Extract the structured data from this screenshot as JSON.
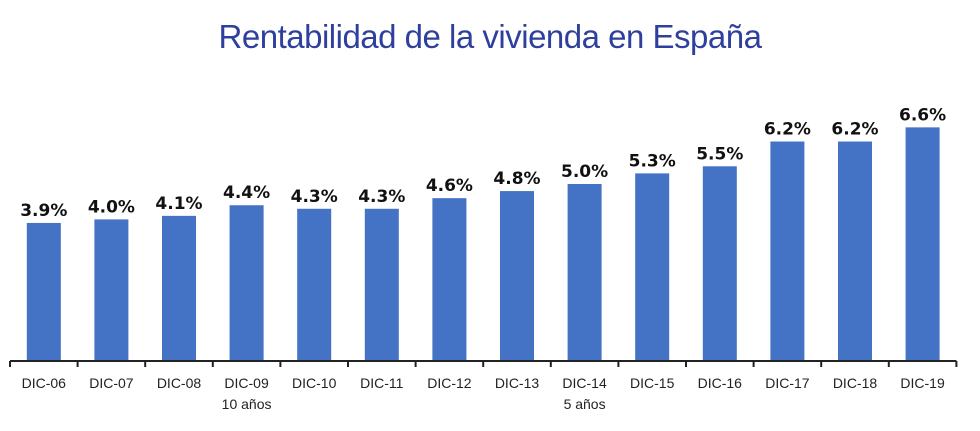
{
  "chart_data": {
    "type": "bar",
    "title": "Rentabilidad de la vivienda en España",
    "categories": [
      "DIC-06",
      "DIC-07",
      "DIC-08",
      "DIC-09",
      "DIC-10",
      "DIC-11",
      "DIC-12",
      "DIC-13",
      "DIC-14",
      "DIC-15",
      "DIC-16",
      "DIC-17",
      "DIC-18",
      "DIC-19"
    ],
    "sublabels": [
      "",
      "",
      "",
      "10 años",
      "",
      "",
      "",
      "",
      "5 años",
      "",
      "",
      "",
      "",
      ""
    ],
    "values": [
      3.9,
      4.0,
      4.1,
      4.4,
      4.3,
      4.3,
      4.6,
      4.8,
      5.0,
      5.3,
      5.5,
      6.2,
      6.2,
      6.6
    ],
    "data_labels": [
      "3.9%",
      "4.0%",
      "4.1%",
      "4.4%",
      "4.3%",
      "4.3%",
      "4.6%",
      "4.8%",
      "5.0%",
      "5.3%",
      "5.5%",
      "6.2%",
      "6.2%",
      "6.6%"
    ],
    "ylim": [
      0,
      7
    ],
    "grid": false,
    "legend": "none",
    "bar_color": "#4472c4",
    "title_color": "#2f3f9e"
  }
}
